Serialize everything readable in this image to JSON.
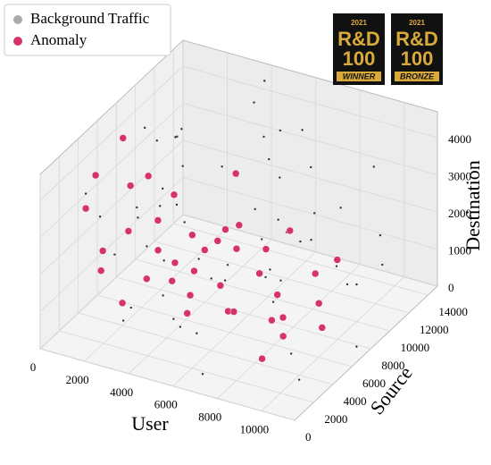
{
  "chart_data": {
    "type": "scatter3d",
    "xlabel": "User",
    "ylabel": "Source",
    "zlabel": "Destination",
    "xlim": [
      0,
      11500
    ],
    "ylim": [
      0,
      15000
    ],
    "zlim": [
      0,
      4700
    ],
    "xticks": [
      0,
      2000,
      4000,
      6000,
      8000,
      10000
    ],
    "yticks": [
      0,
      2000,
      4000,
      6000,
      8000,
      10000,
      12000,
      14000
    ],
    "zticks": [
      0,
      1000,
      2000,
      3000,
      4000
    ],
    "grid": true,
    "legend": "upper left",
    "series": [
      {
        "name": "Background Traffic",
        "color": "#333333",
        "legend_color": "#aaaaaa",
        "x": [
          500,
          1200,
          2300,
          3400,
          4500,
          5600,
          6700,
          7800,
          8900,
          10000,
          11000,
          800,
          1900,
          3000,
          4100,
          5200,
          6300,
          7400,
          8500,
          9600,
          10700,
          300,
          1500,
          2600,
          3700,
          4800,
          5900,
          7000,
          8100,
          9200,
          10300,
          11300,
          600,
          1700,
          2800,
          3900,
          5000,
          6100,
          7200,
          8300,
          9400,
          10500,
          200,
          1300,
          2400,
          3500,
          4600,
          5700,
          6800,
          7900,
          9000,
          10100,
          11200,
          900,
          2000,
          3100,
          4200,
          5300,
          6400,
          7500
        ],
        "y": [
          14000,
          2000,
          9000,
          5000,
          12000,
          1000,
          7000,
          13000,
          3000,
          10000,
          6000,
          11000,
          4000,
          8000,
          14500,
          500,
          9500,
          2500,
          12500,
          6500,
          1500,
          13500,
          7500,
          3500,
          10500,
          5500,
          11500,
          800,
          8500,
          4500,
          12000,
          2200,
          9800,
          6200,
          14200,
          1200,
          7800,
          3800,
          10800,
          5200,
          13200,
          2800,
          11800,
          4800,
          8800,
          600,
          12800,
          3200,
          9200,
          6800,
          14800,
          1800,
          7200,
          4200,
          10200,
          5800,
          13800,
          2400,
          8400,
          11000
        ],
        "z": [
          120,
          3900,
          2100,
          800,
          4500,
          1500,
          3200,
          400,
          2700,
          1000,
          4200,
          1800,
          600,
          3500,
          2300,
          4600,
          900,
          2900,
          150,
          3700,
          1300,
          2500,
          4400,
          700,
          3000,
          1900,
          4100,
          300,
          2200,
          3600,
          1100,
          4300,
          500,
          2600,
          1700,
          3900,
          800,
          2000,
          4500,
          1400,
          3300,
          250,
          2800,
          1600,
          4000,
          1200,
          3400,
          600,
          2400,
          4300,
          1000,
          3100,
          200,
          2700,
          3800,
          1500,
          4600,
          900,
          2000,
          3500
        ]
      },
      {
        "name": "Anomaly",
        "color": "#d6336c",
        "legend_color": "#d6336c",
        "x": [
          300,
          800,
          1500,
          2100,
          2700,
          3300,
          3900,
          4500,
          5100,
          5700,
          6300,
          6900,
          7500,
          8100,
          8700,
          9300,
          9900,
          10500,
          600,
          1200,
          1800,
          2400,
          3000,
          3600,
          4200,
          4800,
          5400,
          6000,
          6600,
          7200,
          7800,
          8400,
          9000,
          9600,
          10200,
          1000,
          3500,
          5500,
          7700,
          9800
        ],
        "y": [
          8000,
          9500,
          6000,
          7500,
          3000,
          8500,
          5000,
          9000,
          2000,
          6500,
          4000,
          7000,
          1500,
          5500,
          3500,
          8000,
          2500,
          4500,
          5000,
          2000,
          7000,
          1000,
          9000,
          4000,
          6000,
          3000,
          8000,
          1500,
          5000,
          9500,
          2500,
          6000,
          4000,
          1000,
          7500,
          3500,
          500,
          4500,
          3000,
          6500
        ],
        "z": [
          3800,
          2500,
          3200,
          1200,
          2900,
          600,
          3600,
          1800,
          2200,
          400,
          3000,
          1500,
          2600,
          800,
          3300,
          200,
          1900,
          2700,
          1000,
          3500,
          500,
          2800,
          1400,
          3100,
          700,
          2400,
          3700,
          1600,
          900,
          2100,
          3400,
          300,
          2000,
          1100,
          2300,
          4000,
          1700,
          2500,
          3900,
          1300
        ]
      }
    ]
  },
  "badges": [
    {
      "year": "2021",
      "brand": "R&D",
      "number": "100",
      "award": "WINNER"
    },
    {
      "year": "2021",
      "brand": "R&D",
      "number": "100",
      "award": "BRONZE"
    }
  ]
}
